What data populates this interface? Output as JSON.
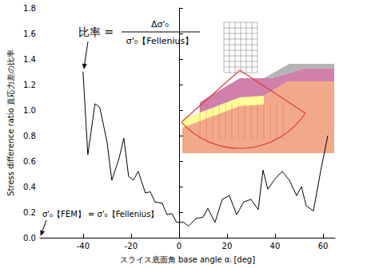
{
  "chart_data": {
    "type": "line",
    "x_label": "スライス底面角 base angle αᵢ [deg]",
    "y_label": "Stress difference ratio 直応力差の比率",
    "x": [
      -40,
      -38,
      -35,
      -33,
      -30,
      -28,
      -25,
      -23,
      -21,
      -19,
      -17,
      -14,
      -12,
      -10,
      -7,
      -5,
      -3,
      -1,
      2,
      4,
      7,
      10,
      12,
      15,
      18,
      21,
      24,
      27,
      30,
      33,
      35,
      37,
      40,
      43,
      46,
      49,
      51,
      53,
      56,
      59,
      62
    ],
    "values": [
      1.3,
      0.65,
      1.05,
      1.02,
      0.75,
      0.45,
      0.62,
      0.78,
      0.48,
      0.45,
      0.52,
      0.35,
      0.36,
      0.28,
      0.27,
      0.18,
      0.19,
      0.12,
      0.12,
      0.09,
      0.15,
      0.16,
      0.23,
      0.12,
      0.3,
      0.33,
      0.18,
      0.28,
      0.3,
      0.22,
      0.53,
      0.38,
      0.46,
      0.52,
      0.45,
      0.33,
      0.4,
      0.25,
      0.21,
      0.52,
      0.8
    ],
    "color": "#000000",
    "line_style": "solid",
    "marker": "none",
    "xlim": [
      -58,
      65
    ],
    "xticks": [
      -40,
      -20,
      0,
      20,
      40,
      60
    ],
    "ylim": [
      0,
      1.8
    ],
    "yticks": [
      {
        "value": 0,
        "label": "0.0"
      },
      {
        "value": 0.2,
        "label": "0.2"
      },
      {
        "value": 0.4,
        "label": "0.4"
      },
      {
        "value": 0.6,
        "label": "0.6"
      },
      {
        "value": 0.8,
        "label": "0.8"
      },
      {
        "value": 1.0,
        "label": "1.0"
      },
      {
        "value": 1.2,
        "label": "1.2"
      },
      {
        "value": 1.4,
        "label": "1.4"
      },
      {
        "value": 1.6,
        "label": "1.6"
      },
      {
        "value": 1.8,
        "label": "1.8"
      }
    ],
    "grid": false,
    "annotations": [
      "比率 =",
      "Δσ'₀",
      "σ'₀【Fellenius】",
      "σ'₀【FEM】 = σ'₀【Fellenius】"
    ]
  }
}
